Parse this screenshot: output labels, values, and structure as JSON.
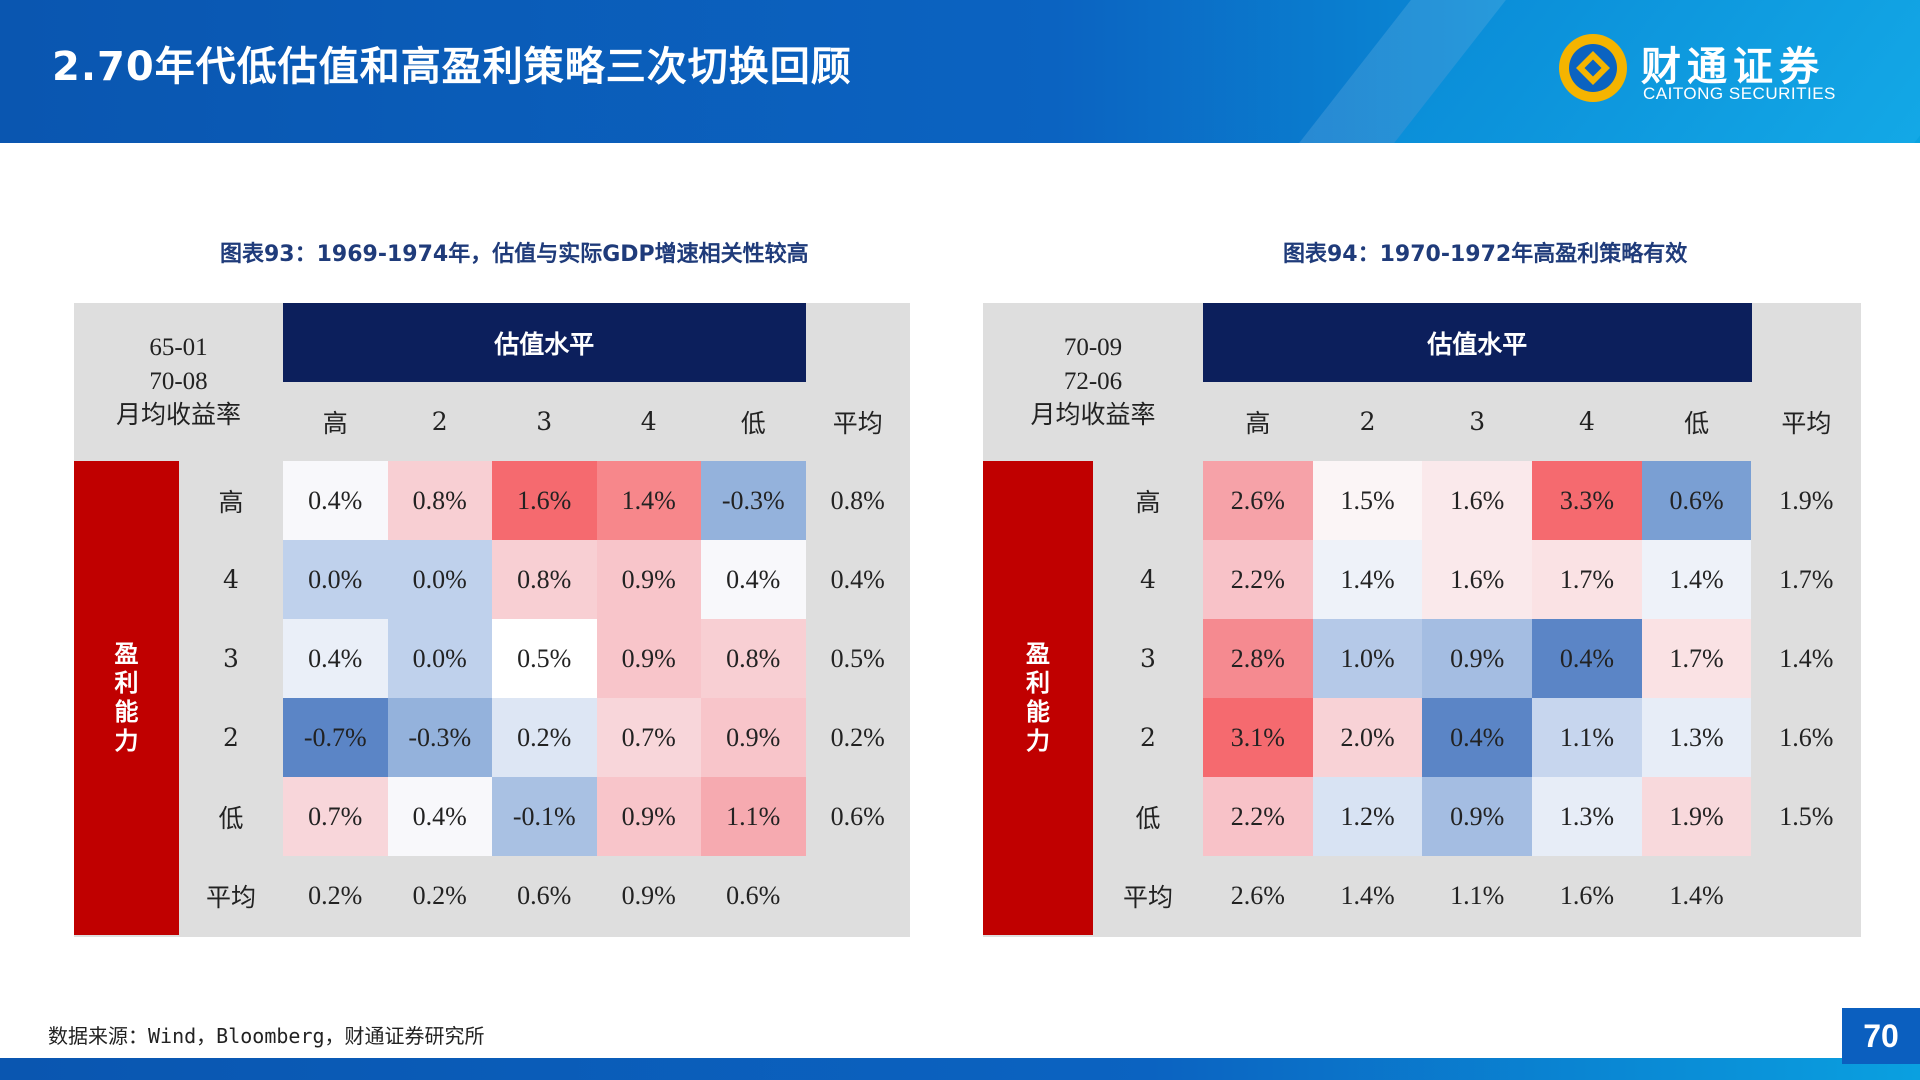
{
  "header": {
    "title": "2.70年代低估值和高盈利策略三次切换回顾",
    "logo_cn": "财通证券",
    "logo_en": "CAITONG SECURITIES"
  },
  "tables": [
    {
      "caption": "图表93：1969-1974年，估值与实际GDP增速相关性较高",
      "corner": [
        "65-01",
        "70-08",
        "月均收益率"
      ],
      "col_group_label": "估值水平",
      "row_group_label": [
        "盈",
        "利",
        "能",
        "力"
      ],
      "col_headers": [
        "高",
        "2",
        "3",
        "4",
        "低",
        "平均"
      ],
      "row_headers": [
        "高",
        "4",
        "3",
        "2",
        "低",
        "平均"
      ],
      "rows": [
        [
          "0.4%",
          "0.8%",
          "1.6%",
          "1.4%",
          "-0.3%",
          "0.8%"
        ],
        [
          "0.0%",
          "0.0%",
          "0.8%",
          "0.9%",
          "0.4%",
          "0.4%"
        ],
        [
          "0.4%",
          "0.0%",
          "0.5%",
          "0.9%",
          "0.8%",
          "0.5%"
        ],
        [
          "-0.7%",
          "-0.3%",
          "0.2%",
          "0.7%",
          "0.9%",
          "0.2%"
        ],
        [
          "0.7%",
          "0.4%",
          "-0.1%",
          "0.9%",
          "1.1%",
          "0.6%"
        ],
        [
          "0.2%",
          "0.2%",
          "0.6%",
          "0.9%",
          "0.6%",
          ""
        ]
      ],
      "colors": [
        [
          "#f8f8fb",
          "#f8cfd3",
          "#f56a6f",
          "#f7878b",
          "#94b2dc",
          null
        ],
        [
          "#bfd1ec",
          "#bfd1ec",
          "#f8cfd3",
          "#f8c5ca",
          "#f8f8fb",
          null
        ],
        [
          "#eaeff8",
          "#bfd1ec",
          "#ffffff",
          "#f8c5ca",
          "#f8cfd3",
          null
        ],
        [
          "#5b85c6",
          "#94b2dc",
          "#dde6f4",
          "#f8d6da",
          "#f8c5ca",
          null
        ],
        [
          "#f8d6da",
          "#f8f8fb",
          "#a9c1e3",
          "#f8c5ca",
          "#f6aab0",
          null
        ],
        [
          null,
          null,
          null,
          null,
          null,
          null
        ]
      ]
    },
    {
      "caption": "图表94：1970-1972年高盈利策略有效",
      "corner": [
        "70-09",
        "72-06",
        "月均收益率"
      ],
      "col_group_label": "估值水平",
      "row_group_label": [
        "盈",
        "利",
        "能",
        "力"
      ],
      "col_headers": [
        "高",
        "2",
        "3",
        "4",
        "低",
        "平均"
      ],
      "row_headers": [
        "高",
        "4",
        "3",
        "2",
        "低",
        "平均"
      ],
      "rows": [
        [
          "2.6%",
          "1.5%",
          "1.6%",
          "3.3%",
          "0.6%",
          "1.9%"
        ],
        [
          "2.2%",
          "1.4%",
          "1.6%",
          "1.7%",
          "1.4%",
          "1.7%"
        ],
        [
          "2.8%",
          "1.0%",
          "0.9%",
          "0.4%",
          "1.7%",
          "1.4%"
        ],
        [
          "3.1%",
          "2.0%",
          "0.4%",
          "1.1%",
          "1.3%",
          "1.6%"
        ],
        [
          "2.2%",
          "1.2%",
          "0.9%",
          "1.3%",
          "1.9%",
          "1.5%"
        ],
        [
          "2.6%",
          "1.4%",
          "1.1%",
          "1.6%",
          "1.4%",
          ""
        ]
      ],
      "colors": [
        [
          "#f6a2a8",
          "#fbf5f6",
          "#fae9eb",
          "#f56a6f",
          "#7a9fd3",
          null
        ],
        [
          "#f8c2c8",
          "#eef2f9",
          "#fae9eb",
          "#fae2e4",
          "#eef2f9",
          null
        ],
        [
          "#f58a90",
          "#b5c9e8",
          "#a4bde2",
          "#5b85c6",
          "#fae2e4",
          null
        ],
        [
          "#f56a6f",
          "#f8d2d6",
          "#5b85c6",
          "#c7d6ee",
          "#e7edf7",
          null
        ],
        [
          "#f8c2c8",
          "#d8e3f3",
          "#a4bde2",
          "#e7edf7",
          "#f8d9dc",
          null
        ],
        [
          null,
          null,
          null,
          null,
          null,
          null
        ]
      ]
    }
  ],
  "source": "数据来源：Wind，Bloomberg，财通证券研究所",
  "page_number": "70"
}
